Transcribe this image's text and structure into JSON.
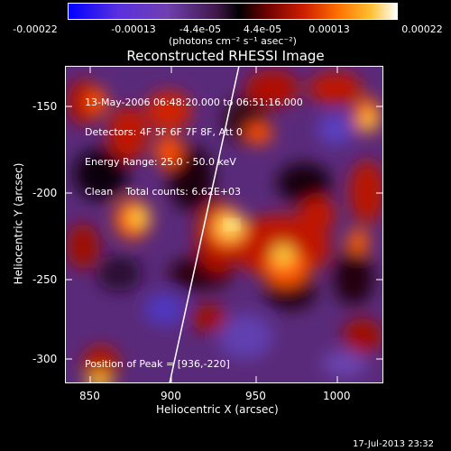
{
  "colorbar": {
    "tick_labels": [
      "-0.00022",
      "-0.00013",
      "-4.4e-05",
      "4.4e-05",
      "0.00013",
      "0.00022"
    ],
    "units": "(photons cm⁻² s⁻¹ asec⁻²)",
    "colors": [
      "#0000ff",
      "#7a2bd8",
      "#6a2a8a",
      "#2a0a2a",
      "#000000",
      "#7a0000",
      "#ff3000",
      "#ffb000",
      "#ffffff"
    ]
  },
  "plot": {
    "title": "Reconstructed RHESSI Image",
    "info_lines": [
      "13-May-2006 06:48:20.000 to 06:51:16.000",
      "Detectors: 4F 5F 6F 7F 8F, Att 0",
      "Energy Range: 25.0 - 50.0 keV",
      "Clean    Total counts: 6.62E+03"
    ],
    "peak_label": "Position of Peak = [936,-220]",
    "x_axis_label": "Heliocentric X (arcsec)",
    "y_axis_label": "Heliocentric Y (arcsec)",
    "x_ticks": [
      "850",
      "900",
      "950",
      "1000"
    ],
    "y_ticks": [
      "-150",
      "-200",
      "-250",
      "-300"
    ]
  },
  "footer": {
    "timestamp": "17-Jul-2013 23:32"
  }
}
